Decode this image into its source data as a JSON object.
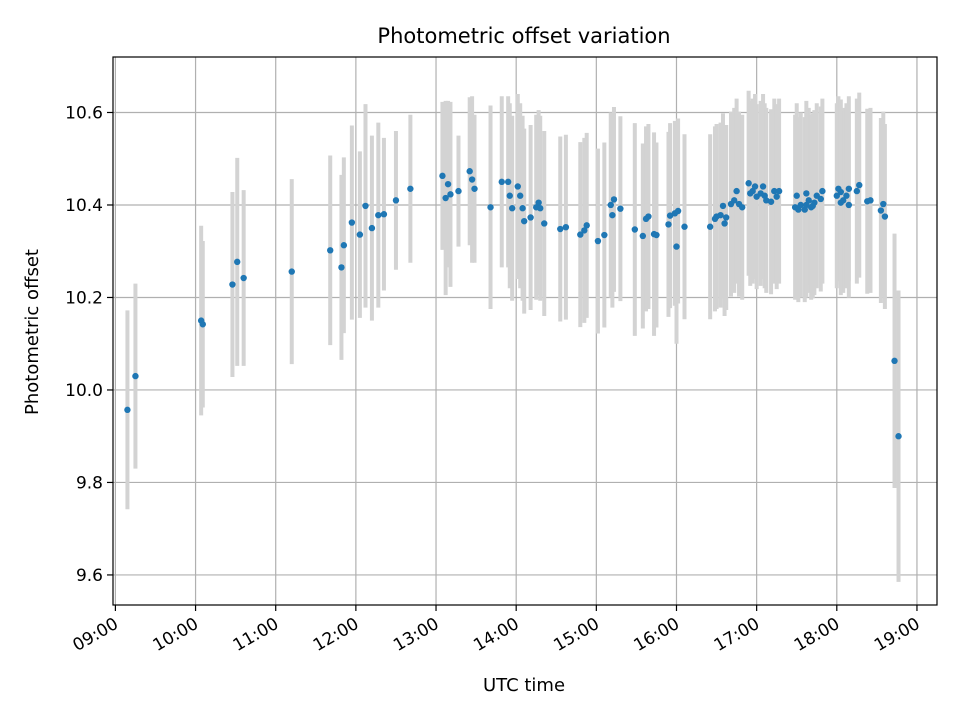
{
  "chart_data": {
    "type": "scatter",
    "title": "Photometric offset variation",
    "xlabel": "UTC time",
    "ylabel": "Photometric offset",
    "grid": true,
    "xlim_hours": [
      8.97,
      19.25
    ],
    "ylim": [
      9.535,
      10.72
    ],
    "x_ticks": [
      {
        "hour": 9,
        "label": "09:00"
      },
      {
        "hour": 10,
        "label": "10:00"
      },
      {
        "hour": 11,
        "label": "11:00"
      },
      {
        "hour": 12,
        "label": "12:00"
      },
      {
        "hour": 13,
        "label": "13:00"
      },
      {
        "hour": 14,
        "label": "14:00"
      },
      {
        "hour": 15,
        "label": "15:00"
      },
      {
        "hour": 16,
        "label": "16:00"
      },
      {
        "hour": 17,
        "label": "17:00"
      },
      {
        "hour": 18,
        "label": "18:00"
      },
      {
        "hour": 19,
        "label": "19:00"
      }
    ],
    "y_ticks": [
      {
        "value": 9.6,
        "label": "9.6"
      },
      {
        "value": 9.8,
        "label": "9.8"
      },
      {
        "value": 10.0,
        "label": "10.0"
      },
      {
        "value": 10.2,
        "label": "10.2"
      },
      {
        "value": 10.4,
        "label": "10.4"
      },
      {
        "value": 10.6,
        "label": "10.6"
      }
    ],
    "colors": {
      "point": "#1f77b4",
      "errorbar": "#d3d3d3",
      "grid": "#b0b0b0"
    },
    "points": [
      [
        9.15,
        9.957,
        0.215
      ],
      [
        9.25,
        10.03,
        0.2
      ],
      [
        10.07,
        10.15,
        0.205
      ],
      [
        10.09,
        10.142,
        0.18
      ],
      [
        10.46,
        10.228,
        0.2
      ],
      [
        10.52,
        10.277,
        0.225
      ],
      [
        10.6,
        10.242,
        0.19
      ],
      [
        11.2,
        10.256,
        0.2
      ],
      [
        11.68,
        10.302,
        0.205
      ],
      [
        11.82,
        10.265,
        0.2
      ],
      [
        11.85,
        10.313,
        0.19
      ],
      [
        11.95,
        10.362,
        0.21
      ],
      [
        12.05,
        10.336,
        0.18
      ],
      [
        12.12,
        10.398,
        0.22
      ],
      [
        12.2,
        10.35,
        0.2
      ],
      [
        12.28,
        10.378,
        0.2
      ],
      [
        12.35,
        10.38,
        0.165
      ],
      [
        12.5,
        10.41,
        0.15
      ],
      [
        12.68,
        10.435,
        0.16
      ],
      [
        13.08,
        10.463,
        0.16
      ],
      [
        13.12,
        10.415,
        0.21
      ],
      [
        13.15,
        10.445,
        0.18
      ],
      [
        13.18,
        10.423,
        0.2
      ],
      [
        13.28,
        10.43,
        0.12
      ],
      [
        13.42,
        10.473,
        0.16
      ],
      [
        13.45,
        10.455,
        0.18
      ],
      [
        13.48,
        10.435,
        0.16
      ],
      [
        13.68,
        10.395,
        0.22
      ],
      [
        13.82,
        10.45,
        0.185
      ],
      [
        13.9,
        10.45,
        0.185
      ],
      [
        13.92,
        10.42,
        0.2
      ],
      [
        13.95,
        10.393,
        0.2
      ],
      [
        14.02,
        10.44,
        0.2
      ],
      [
        14.05,
        10.42,
        0.2
      ],
      [
        14.08,
        10.393,
        0.2
      ],
      [
        14.1,
        10.365,
        0.2
      ],
      [
        14.18,
        10.373,
        0.2
      ],
      [
        14.25,
        10.395,
        0.2
      ],
      [
        14.28,
        10.405,
        0.2
      ],
      [
        14.3,
        10.393,
        0.2
      ],
      [
        14.35,
        10.36,
        0.2
      ],
      [
        14.55,
        10.348,
        0.2
      ],
      [
        14.62,
        10.352,
        0.2
      ],
      [
        14.8,
        10.336,
        0.2
      ],
      [
        14.85,
        10.345,
        0.2
      ],
      [
        14.88,
        10.356,
        0.2
      ],
      [
        15.02,
        10.322,
        0.2
      ],
      [
        15.1,
        10.335,
        0.2
      ],
      [
        15.18,
        10.4,
        0.2
      ],
      [
        15.22,
        10.412,
        0.2
      ],
      [
        15.2,
        10.378,
        0.2
      ],
      [
        15.3,
        10.392,
        0.2
      ],
      [
        15.48,
        10.347,
        0.23
      ],
      [
        15.58,
        10.333,
        0.2
      ],
      [
        15.62,
        10.37,
        0.2
      ],
      [
        15.65,
        10.375,
        0.2
      ],
      [
        15.72,
        10.337,
        0.22
      ],
      [
        15.75,
        10.335,
        0.2
      ],
      [
        15.9,
        10.358,
        0.2
      ],
      [
        15.92,
        10.377,
        0.2
      ],
      [
        15.98,
        10.382,
        0.2
      ],
      [
        16.0,
        10.31,
        0.21
      ],
      [
        16.02,
        10.387,
        0.2
      ],
      [
        16.1,
        10.353,
        0.2
      ],
      [
        16.42,
        10.353,
        0.2
      ],
      [
        16.48,
        10.37,
        0.2
      ],
      [
        16.5,
        10.375,
        0.2
      ],
      [
        16.55,
        10.378,
        0.2
      ],
      [
        16.58,
        10.398,
        0.2
      ],
      [
        16.6,
        10.36,
        0.2
      ],
      [
        16.62,
        10.373,
        0.2
      ],
      [
        16.68,
        10.402,
        0.2
      ],
      [
        16.72,
        10.41,
        0.2
      ],
      [
        16.75,
        10.43,
        0.2
      ],
      [
        16.78,
        10.402,
        0.2
      ],
      [
        16.82,
        10.395,
        0.2
      ],
      [
        16.9,
        10.447,
        0.2
      ],
      [
        16.92,
        10.425,
        0.2
      ],
      [
        16.95,
        10.43,
        0.2
      ],
      [
        16.98,
        10.44,
        0.2
      ],
      [
        17.0,
        10.418,
        0.2
      ],
      [
        17.05,
        10.425,
        0.2
      ],
      [
        17.08,
        10.44,
        0.2
      ],
      [
        17.1,
        10.42,
        0.2
      ],
      [
        17.12,
        10.41,
        0.2
      ],
      [
        17.18,
        10.407,
        0.2
      ],
      [
        17.22,
        10.43,
        0.2
      ],
      [
        17.25,
        10.418,
        0.2
      ],
      [
        17.28,
        10.43,
        0.2
      ],
      [
        17.48,
        10.395,
        0.2
      ],
      [
        17.52,
        10.39,
        0.2
      ],
      [
        17.55,
        10.4,
        0.2
      ],
      [
        17.6,
        10.39,
        0.2
      ],
      [
        17.62,
        10.4,
        0.2
      ],
      [
        17.65,
        10.41,
        0.2
      ],
      [
        17.68,
        10.395,
        0.2
      ],
      [
        17.7,
        10.398,
        0.2
      ],
      [
        17.72,
        10.405,
        0.2
      ],
      [
        17.75,
        10.42,
        0.2
      ],
      [
        17.8,
        10.413,
        0.2
      ],
      [
        17.82,
        10.43,
        0.2
      ],
      [
        17.5,
        10.42,
        0.2
      ],
      [
        17.62,
        10.425,
        0.2
      ],
      [
        18.0,
        10.42,
        0.2
      ],
      [
        18.02,
        10.435,
        0.2
      ],
      [
        18.05,
        10.428,
        0.2
      ],
      [
        18.08,
        10.41,
        0.2
      ],
      [
        18.12,
        10.42,
        0.2
      ],
      [
        18.15,
        10.435,
        0.2
      ],
      [
        18.25,
        10.43,
        0.2
      ],
      [
        18.28,
        10.443,
        0.2
      ],
      [
        18.38,
        10.408,
        0.2
      ],
      [
        18.42,
        10.41,
        0.2
      ],
      [
        18.05,
        10.405,
        0.2
      ],
      [
        18.15,
        10.4,
        0.2
      ],
      [
        18.55,
        10.388,
        0.2
      ],
      [
        18.58,
        10.402,
        0.2
      ],
      [
        18.6,
        10.375,
        0.2
      ],
      [
        18.72,
        10.063,
        0.275
      ],
      [
        18.77,
        9.9,
        0.315
      ]
    ]
  }
}
